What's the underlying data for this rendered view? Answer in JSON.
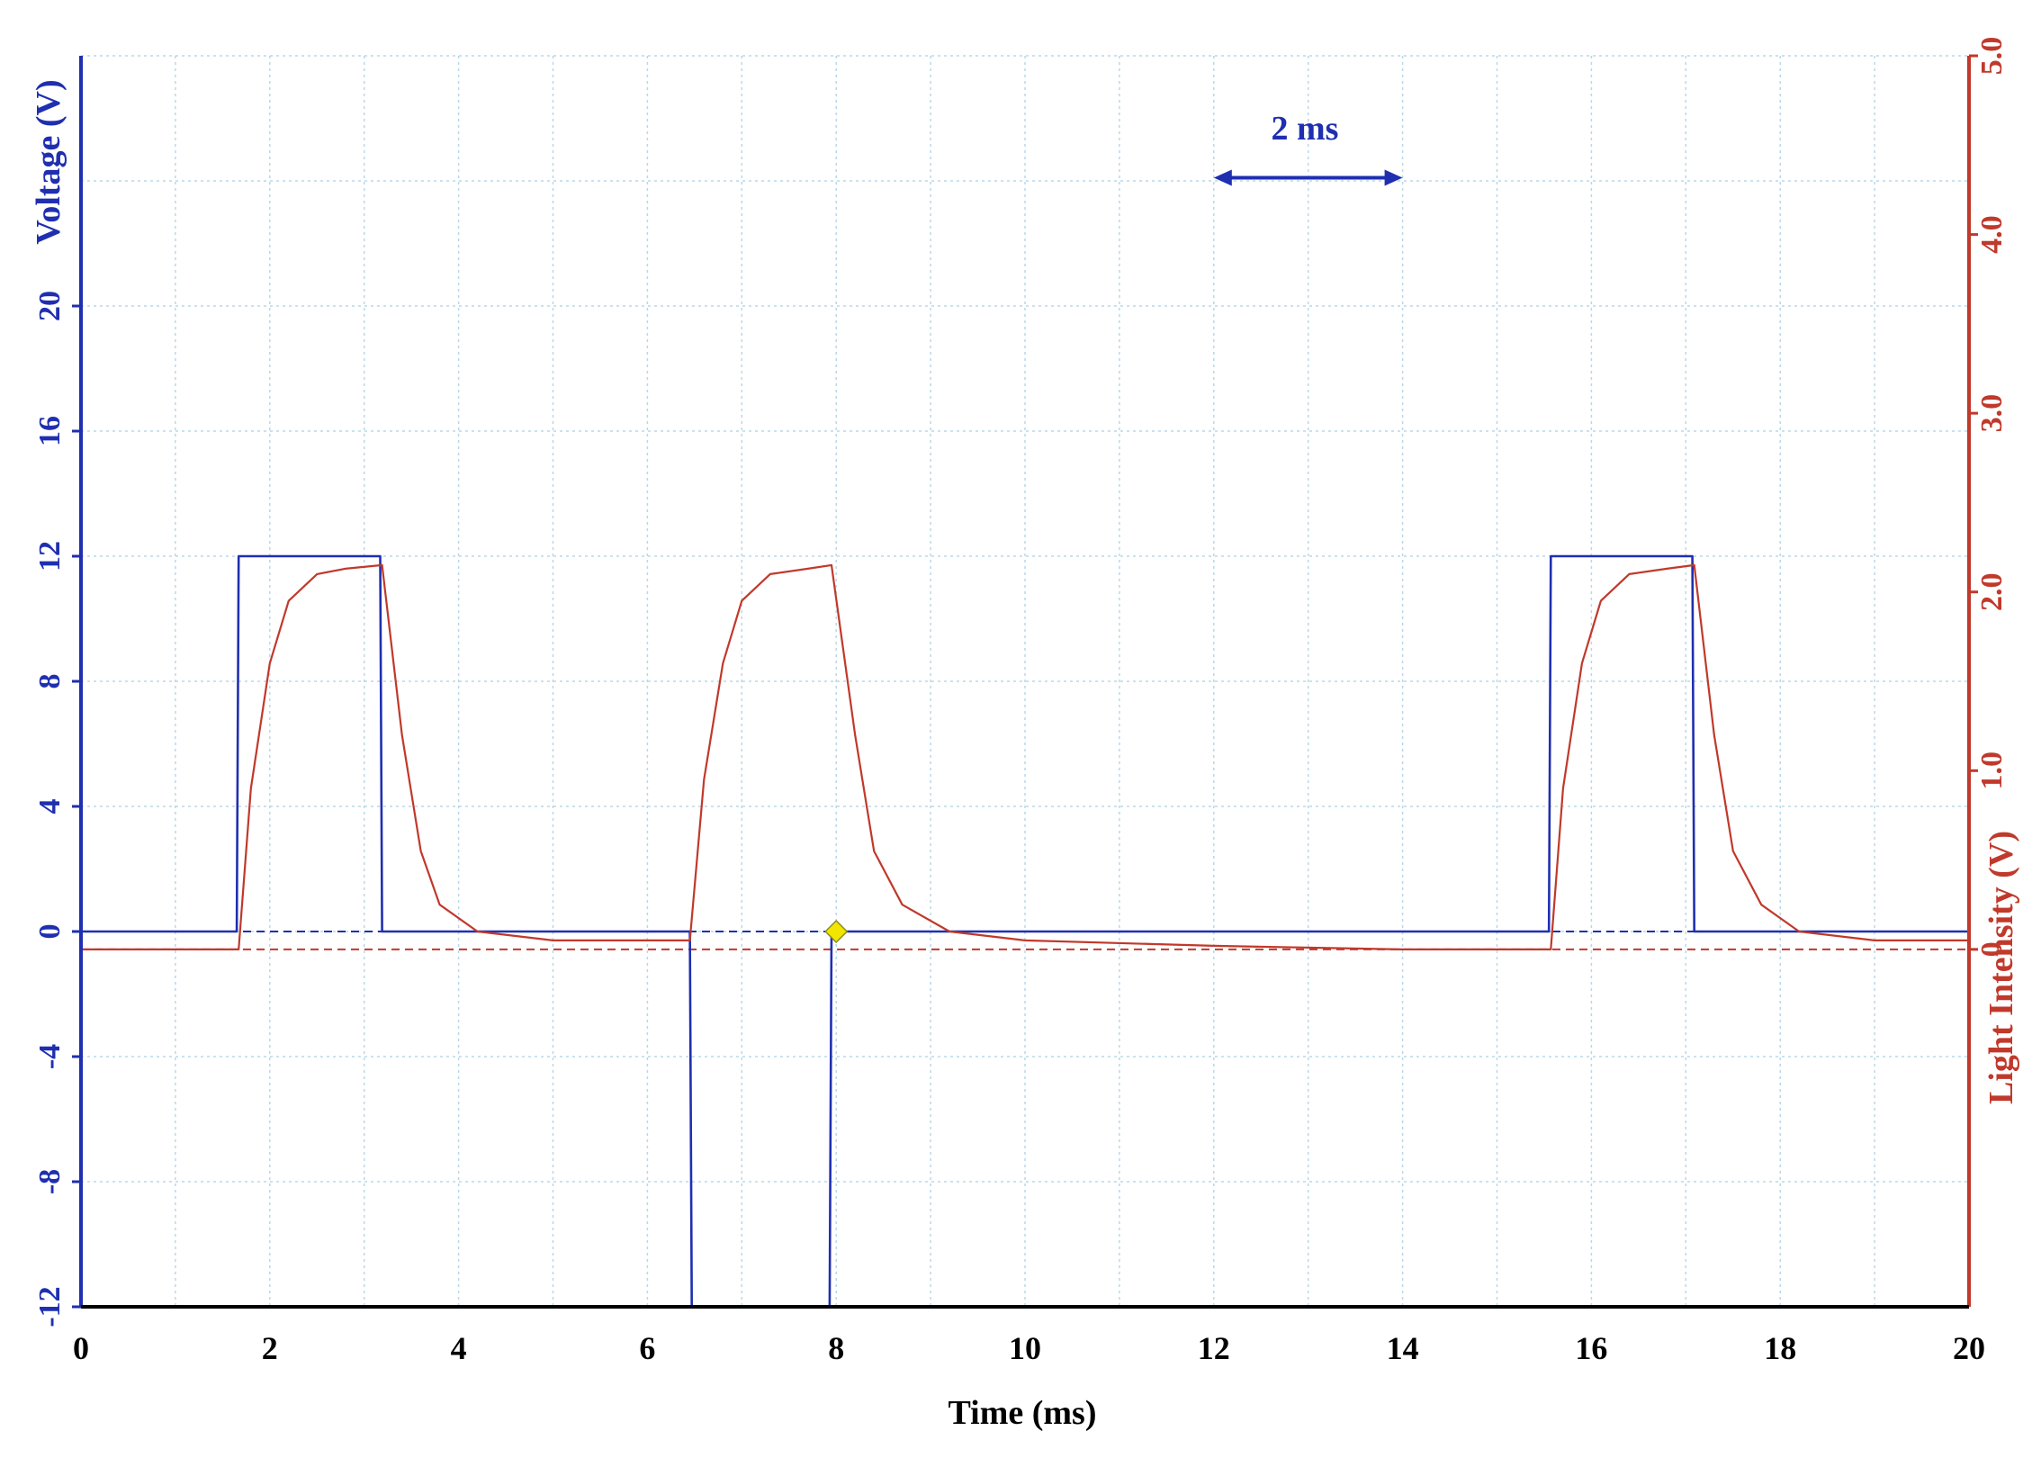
{
  "chart_data": {
    "type": "line",
    "title": "",
    "xlabel": "Time (ms)",
    "ylabel_left": "Voltage (V)",
    "ylabel_right": "Light Intensity (V)",
    "xlim": [
      0,
      20
    ],
    "ylim_left": [
      -12,
      28
    ],
    "ylim_right": [
      -2.0,
      5.0
    ],
    "x_ticks": [
      0,
      2,
      4,
      6,
      8,
      10,
      12,
      14,
      16,
      18,
      20
    ],
    "x_tick_labels": [
      "0",
      "2",
      "4",
      "6",
      "8",
      "10",
      "12",
      "14",
      "16",
      "18",
      "20"
    ],
    "y_left_ticks": [
      -12,
      -8,
      -4,
      0,
      4,
      8,
      12,
      16,
      20
    ],
    "y_left_tick_labels": [
      "-12",
      "-8",
      "-4",
      "0",
      "4",
      "8",
      "12",
      "16",
      "20"
    ],
    "y_right_ticks": [
      0,
      1.0,
      2.0,
      3.0,
      4.0,
      5.0
    ],
    "y_right_tick_labels": [
      "0",
      "1.0",
      "2.0",
      "3.0",
      "4.0",
      "5.0"
    ],
    "grid": true,
    "colors": {
      "voltage": "#1f2fb0",
      "light": "#c0392b",
      "grid": "#b9d8e8",
      "marker": "#f2e600"
    },
    "annotation": {
      "text": "2 ms",
      "x_start": 12,
      "x_end": 14,
      "y_left": 24.1
    },
    "marker": {
      "x": 8,
      "y_left": 0
    },
    "series": [
      {
        "axis": "left",
        "baseline": 0,
        "x": [
          0,
          1.65,
          1.67,
          3.17,
          3.19,
          6.45,
          6.47,
          7.93,
          7.95,
          15.55,
          15.57,
          17.07,
          17.09,
          20
        ],
        "values": [
          0,
          0,
          12,
          12,
          0,
          0,
          -12,
          -12,
          0,
          0,
          12,
          12,
          0,
          0
        ]
      },
      {
        "axis": "right",
        "baseline": 0,
        "x": [
          0,
          1.67,
          1.8,
          2.0,
          2.2,
          2.5,
          2.8,
          3.19,
          3.4,
          3.6,
          3.8,
          4.2,
          5.0,
          6.0,
          6.45,
          6.6,
          6.8,
          7.0,
          7.3,
          7.7,
          7.95,
          8.2,
          8.4,
          8.7,
          9.2,
          10.0,
          12.0,
          14.0,
          15.57,
          15.7,
          15.9,
          16.1,
          16.4,
          16.8,
          17.09,
          17.3,
          17.5,
          17.8,
          18.2,
          19.0,
          20.0
        ],
        "values": [
          0,
          0,
          0.9,
          1.6,
          1.95,
          2.1,
          2.13,
          2.15,
          1.2,
          0.55,
          0.25,
          0.1,
          0.05,
          0.05,
          0.05,
          0.95,
          1.6,
          1.95,
          2.1,
          2.13,
          2.15,
          1.2,
          0.55,
          0.25,
          0.1,
          0.05,
          0.02,
          0.0,
          0.0,
          0.9,
          1.6,
          1.95,
          2.1,
          2.13,
          2.15,
          1.2,
          0.55,
          0.25,
          0.1,
          0.05,
          0.05
        ]
      }
    ]
  }
}
